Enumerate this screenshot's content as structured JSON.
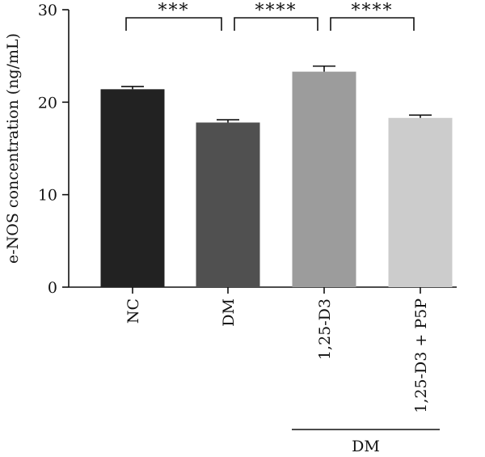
{
  "chart_data": {
    "type": "bar",
    "title": "",
    "xlabel": "",
    "ylabel": "e-NOS concentration (ng/mL)",
    "ylim": [
      0,
      30
    ],
    "yticks": [
      0,
      10,
      20,
      30
    ],
    "grid": false,
    "categories": [
      "NC",
      "DM",
      "1,25-D3",
      "1,25-D3 + P5P"
    ],
    "values": [
      21.4,
      17.8,
      23.3,
      18.3
    ],
    "errors": [
      0.3,
      0.3,
      0.6,
      0.3
    ],
    "colors": [
      "#222222",
      "#505050",
      "#9c9c9c",
      "#cccccc"
    ],
    "significance": [
      {
        "from": 0,
        "to": 1,
        "label": "***"
      },
      {
        "from": 1,
        "to": 2,
        "label": "****"
      },
      {
        "from": 2,
        "to": 3,
        "label": "****"
      }
    ],
    "group_annotation": {
      "label": "DM",
      "from": 2,
      "to": 3
    }
  }
}
